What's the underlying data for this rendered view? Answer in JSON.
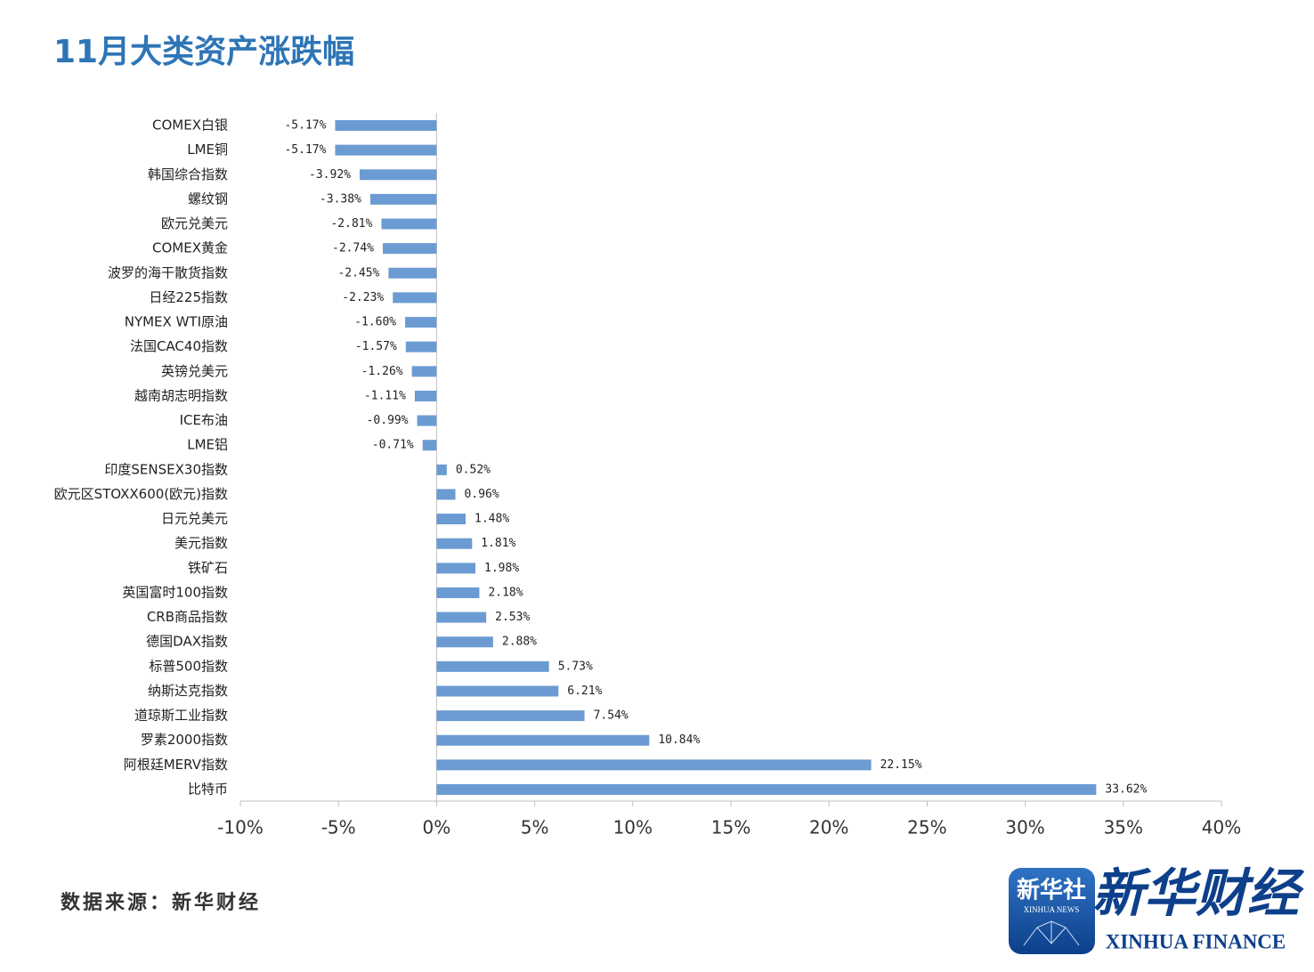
{
  "chart_data": {
    "type": "hbar",
    "title": "11月大类资产涨跌幅",
    "categories": [
      "COMEX白银",
      "LME铜",
      "韩国综合指数",
      "螺纹钢",
      "欧元兑美元",
      "COMEX黄金",
      "波罗的海干散货指数",
      "日经225指数",
      "NYMEX WTI原油",
      "法国CAC40指数",
      "英镑兑美元",
      "越南胡志明指数",
      "ICE布油",
      "LME铝",
      "印度SENSEX30指数",
      "欧元区STOXX600(欧元)指数",
      "日元兑美元",
      "美元指数",
      "铁矿石",
      "英国富时100指数",
      "CRB商品指数",
      "德国DAX指数",
      "标普500指数",
      "纳斯达克指数",
      "道琼斯工业指数",
      "罗素2000指数",
      "阿根廷MERV指数",
      "比特币"
    ],
    "values": [
      -5.17,
      -5.17,
      -3.92,
      -3.38,
      -2.81,
      -2.74,
      -2.45,
      -2.23,
      -1.6,
      -1.57,
      -1.26,
      -1.11,
      -0.99,
      -0.71,
      0.52,
      0.96,
      1.48,
      1.81,
      1.98,
      2.18,
      2.53,
      2.88,
      5.73,
      6.21,
      7.54,
      10.84,
      22.15,
      33.62
    ],
    "value_labels": [
      "-5.17%",
      "-5.17%",
      "-3.92%",
      "-3.38%",
      "-2.81%",
      "-2.74%",
      "-2.45%",
      "-2.23%",
      "-1.60%",
      "-1.57%",
      "-1.26%",
      "-1.11%",
      "-0.99%",
      "-0.71%",
      "0.52%",
      "0.96%",
      "1.48%",
      "1.81%",
      "1.98%",
      "2.18%",
      "2.53%",
      "2.88%",
      "5.73%",
      "6.21%",
      "7.54%",
      "10.84%",
      "22.15%",
      "33.62%"
    ],
    "color": "#6b9bd2",
    "xlim": [
      -10,
      40
    ],
    "xticks": [
      {
        "value": -10,
        "label": "-10%"
      },
      {
        "value": -5,
        "label": "-5%"
      },
      {
        "value": 0,
        "label": "0%"
      },
      {
        "value": 5,
        "label": "5%"
      },
      {
        "value": 10,
        "label": "10%"
      },
      {
        "value": 15,
        "label": "15%"
      },
      {
        "value": 20,
        "label": "20%"
      },
      {
        "value": 25,
        "label": "25%"
      },
      {
        "value": 30,
        "label": "30%"
      },
      {
        "value": 35,
        "label": "35%"
      },
      {
        "value": 40,
        "label": "40%"
      }
    ],
    "grid": false
  },
  "source": "数据来源：新华财经",
  "logo": {
    "badge": "新华社",
    "badge_sub": "XINHUA NEWS",
    "brand": "新华财经",
    "brand_sub": "XINHUA FINANCE"
  }
}
